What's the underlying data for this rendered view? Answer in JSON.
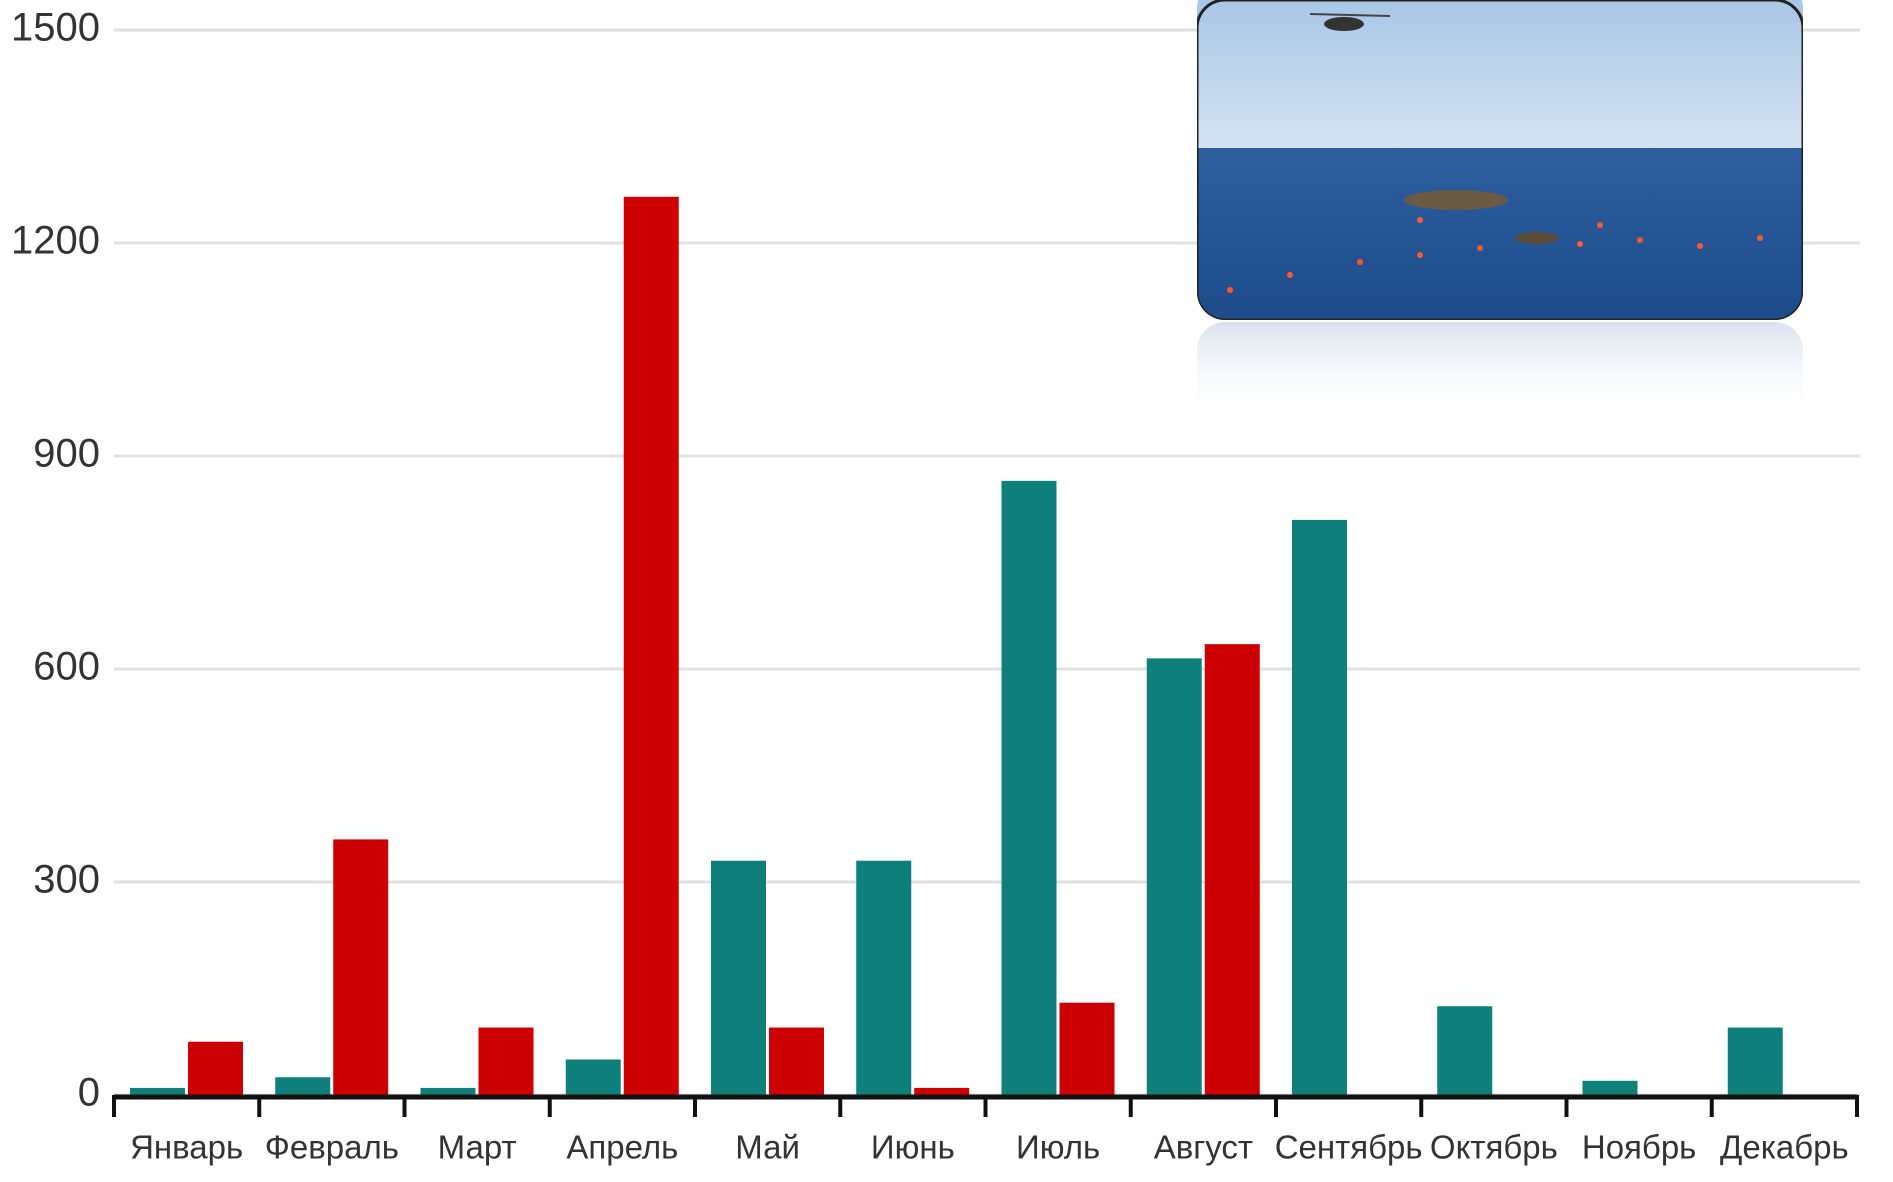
{
  "chart_data": {
    "type": "bar",
    "categories": [
      "Январь",
      "Февраль",
      "Март",
      "Апрель",
      "Май",
      "Июнь",
      "Июль",
      "Август",
      "Сентябрь",
      "Октябрь",
      "Ноябрь",
      "Декабрь"
    ],
    "series": [
      {
        "color": "#0f7f7b",
        "values": [
          10,
          25,
          10,
          50,
          330,
          330,
          865,
          615,
          810,
          125,
          20,
          95
        ]
      },
      {
        "color": "#cc0000",
        "values": [
          75,
          360,
          95,
          1265,
          95,
          10,
          130,
          635,
          null,
          null,
          null,
          null
        ]
      }
    ],
    "ylim": [
      0,
      1500
    ],
    "yticks": [
      0,
      300,
      600,
      900,
      1200,
      1500
    ],
    "grid": true
  }
}
